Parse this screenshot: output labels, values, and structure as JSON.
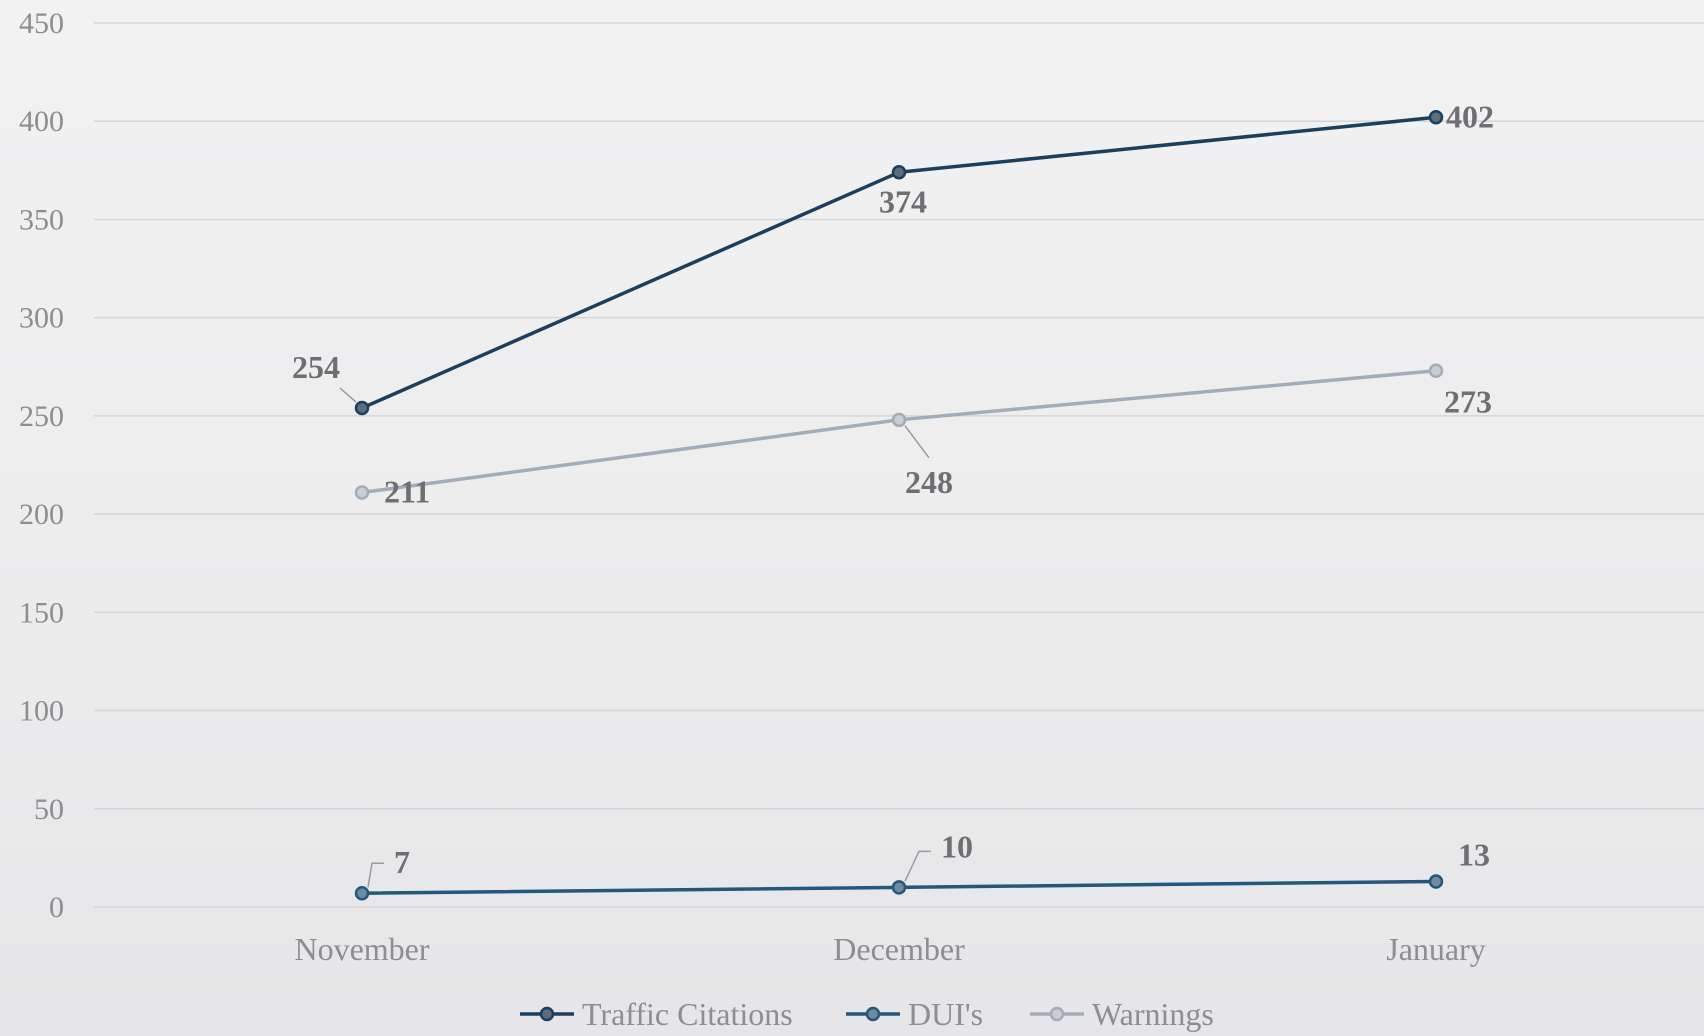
{
  "chart_data": {
    "type": "line",
    "categories": [
      "November",
      "December",
      "January"
    ],
    "ylim": [
      0,
      450
    ],
    "yticks": [
      0,
      50,
      100,
      150,
      200,
      250,
      300,
      350,
      400,
      450
    ],
    "grid": true,
    "legend_position": "bottom",
    "series": [
      {
        "name": "Traffic Citations",
        "values": [
          254,
          374,
          402
        ],
        "color": "#1b3f5e",
        "marker_fill": "#5b6e80"
      },
      {
        "name": "DUI's",
        "values": [
          7,
          10,
          13
        ],
        "color": "#24577a",
        "marker_fill": "#6f8aa0"
      },
      {
        "name": "Warnings",
        "values": [
          211,
          248,
          273
        ],
        "color": "#a3adb8",
        "marker_fill": "#c9ced4"
      }
    ]
  }
}
